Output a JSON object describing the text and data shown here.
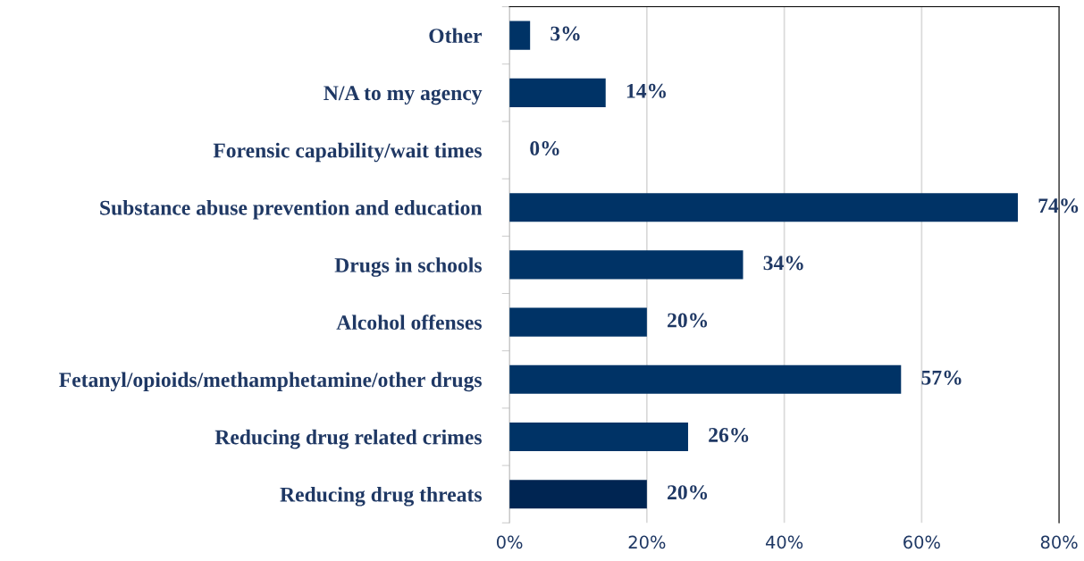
{
  "chart_data": {
    "type": "bar",
    "orientation": "horizontal",
    "categories": [
      "Other",
      "N/A to my agency",
      "Forensic capability/wait times",
      "Substance abuse prevention and education",
      "Drugs in schools",
      "Alcohol offenses",
      "Fetanyl/opioids/methamphetamine/other drugs",
      "Reducing drug related crimes",
      "Reducing drug threats"
    ],
    "values": [
      3,
      14,
      0,
      74,
      34,
      20,
      57,
      26,
      20
    ],
    "colors": [
      "#003366",
      "#003366",
      "#003366",
      "#003366",
      "#003366",
      "#003366",
      "#003366",
      "#003366",
      "#002552"
    ],
    "value_labels": [
      "3%",
      "14%",
      "0%",
      "74%",
      "34%",
      "20%",
      "57%",
      "26%",
      "20%"
    ],
    "xlim": [
      0,
      80
    ],
    "xticks": [
      {
        "value": 0,
        "label": "0%"
      },
      {
        "value": 20,
        "label": "20%"
      },
      {
        "value": 40,
        "label": "40%"
      },
      {
        "value": 60,
        "label": "60%"
      },
      {
        "value": 80,
        "label": "80%"
      }
    ],
    "grid": "x",
    "legend": false
  }
}
